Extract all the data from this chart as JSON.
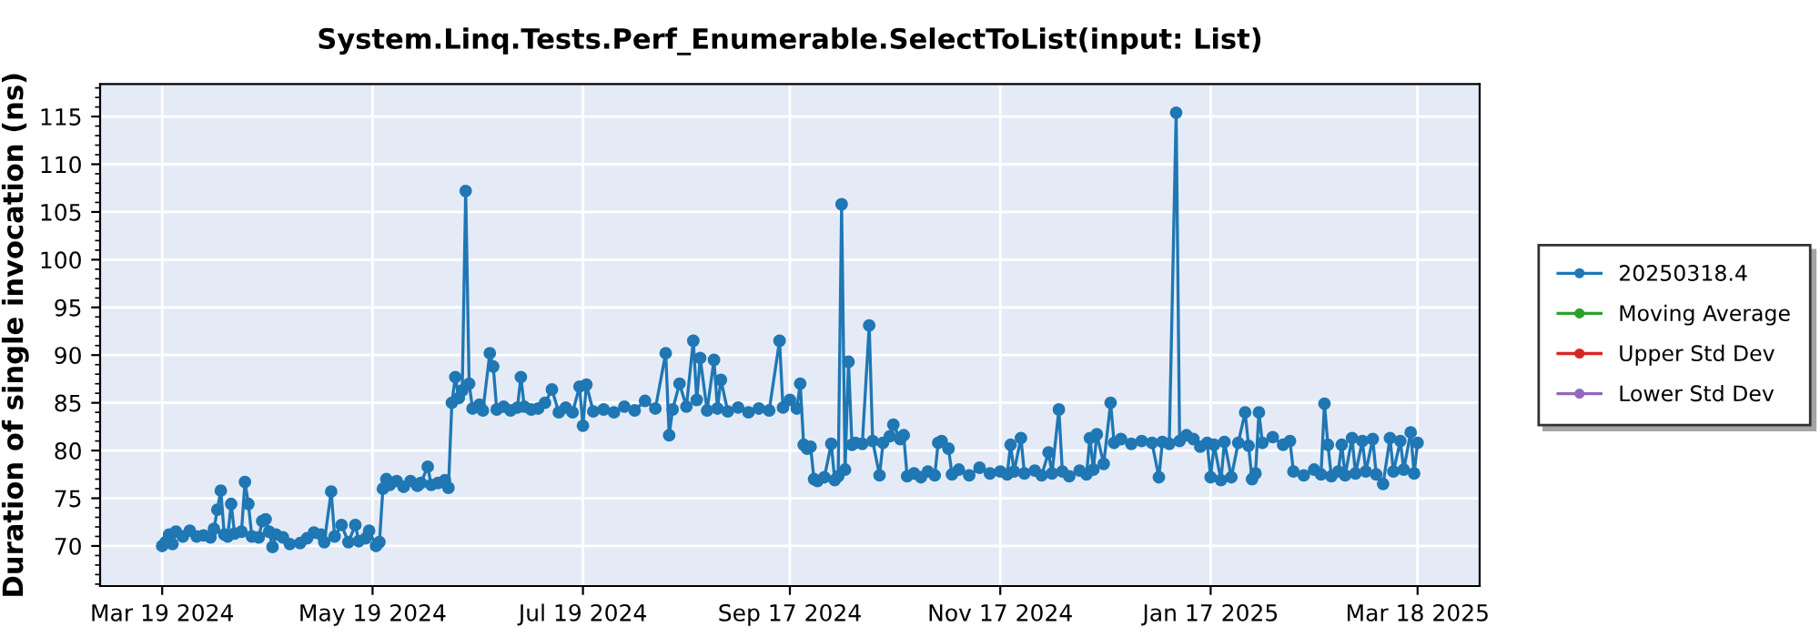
{
  "chart_data": {
    "type": "line",
    "title": "System.Linq.Tests.Perf_Enumerable.SelectToList(input: List)",
    "ylabel": "Duration of single invocation (ns)",
    "xlim": [
      "2024-03-01",
      "2025-04-05"
    ],
    "ylim": [
      65.8,
      118.4
    ],
    "xticks": [
      {
        "value": "2024-03-19",
        "label": "Mar 19 2024"
      },
      {
        "value": "2024-05-19",
        "label": "May 19 2024"
      },
      {
        "value": "2024-07-19",
        "label": "Jul 19 2024"
      },
      {
        "value": "2024-09-17",
        "label": "Sep 17 2024"
      },
      {
        "value": "2024-11-17",
        "label": "Nov 17 2024"
      },
      {
        "value": "2025-01-17",
        "label": "Jan 17 2025"
      },
      {
        "value": "2025-03-18",
        "label": "Mar 18 2025"
      }
    ],
    "yticks": [
      70,
      75,
      80,
      85,
      90,
      95,
      100,
      105,
      110,
      115
    ],
    "grid": true,
    "legend": "right",
    "marker": "circle",
    "line_style": "solid",
    "series": [
      {
        "name": "20250318.4",
        "color": "#1f77b4",
        "x": [
          "2024-03-19",
          "2024-03-20",
          "2024-03-21",
          "2024-03-22",
          "2024-03-23",
          "2024-03-25",
          "2024-03-27",
          "2024-03-29",
          "2024-03-31",
          "2024-04-02",
          "2024-04-03",
          "2024-04-04",
          "2024-04-05",
          "2024-04-06",
          "2024-04-07",
          "2024-04-08",
          "2024-04-09",
          "2024-04-11",
          "2024-04-12",
          "2024-04-13",
          "2024-04-14",
          "2024-04-16",
          "2024-04-17",
          "2024-04-18",
          "2024-04-19",
          "2024-04-20",
          "2024-04-21",
          "2024-04-23",
          "2024-04-25",
          "2024-04-28",
          "2024-04-30",
          "2024-05-02",
          "2024-05-04",
          "2024-05-05",
          "2024-05-07",
          "2024-05-08",
          "2024-05-10",
          "2024-05-12",
          "2024-05-14",
          "2024-05-15",
          "2024-05-17",
          "2024-05-18",
          "2024-05-20",
          "2024-05-21",
          "2024-05-22",
          "2024-05-23",
          "2024-05-24",
          "2024-05-26",
          "2024-05-28",
          "2024-05-30",
          "2024-06-01",
          "2024-06-02",
          "2024-06-04",
          "2024-06-05",
          "2024-06-07",
          "2024-06-09",
          "2024-06-10",
          "2024-06-11",
          "2024-06-12",
          "2024-06-13",
          "2024-06-14",
          "2024-06-15",
          "2024-06-16",
          "2024-06-17",
          "2024-06-19",
          "2024-06-20",
          "2024-06-22",
          "2024-06-23",
          "2024-06-24",
          "2024-06-26",
          "2024-06-28",
          "2024-06-30",
          "2024-07-01",
          "2024-07-02",
          "2024-07-04",
          "2024-07-06",
          "2024-07-08",
          "2024-07-10",
          "2024-07-12",
          "2024-07-14",
          "2024-07-16",
          "2024-07-18",
          "2024-07-19",
          "2024-07-20",
          "2024-07-22",
          "2024-07-25",
          "2024-07-28",
          "2024-07-31",
          "2024-08-03",
          "2024-08-06",
          "2024-08-09",
          "2024-08-12",
          "2024-08-13",
          "2024-08-14",
          "2024-08-16",
          "2024-08-18",
          "2024-08-20",
          "2024-08-21",
          "2024-08-22",
          "2024-08-24",
          "2024-08-26",
          "2024-08-27",
          "2024-08-28",
          "2024-08-30",
          "2024-09-02",
          "2024-09-05",
          "2024-09-08",
          "2024-09-11",
          "2024-09-14",
          "2024-09-15",
          "2024-09-17",
          "2024-09-19",
          "2024-09-20",
          "2024-09-21",
          "2024-09-22",
          "2024-09-23",
          "2024-09-24",
          "2024-09-25",
          "2024-09-27",
          "2024-09-29",
          "2024-09-30",
          "2024-10-01",
          "2024-10-02",
          "2024-10-03",
          "2024-10-04",
          "2024-10-05",
          "2024-10-06",
          "2024-10-08",
          "2024-10-10",
          "2024-10-11",
          "2024-10-13",
          "2024-10-14",
          "2024-10-16",
          "2024-10-17",
          "2024-10-19",
          "2024-10-20",
          "2024-10-21",
          "2024-10-23",
          "2024-10-25",
          "2024-10-27",
          "2024-10-29",
          "2024-10-30",
          "2024-10-31",
          "2024-11-02",
          "2024-11-03",
          "2024-11-05",
          "2024-11-08",
          "2024-11-11",
          "2024-11-14",
          "2024-11-17",
          "2024-11-19",
          "2024-11-20",
          "2024-11-21",
          "2024-11-23",
          "2024-11-24",
          "2024-11-27",
          "2024-11-29",
          "2024-12-01",
          "2024-12-02",
          "2024-12-04",
          "2024-12-05",
          "2024-12-07",
          "2024-12-10",
          "2024-12-12",
          "2024-12-13",
          "2024-12-14",
          "2024-12-15",
          "2024-12-17",
          "2024-12-19",
          "2024-12-20",
          "2024-12-22",
          "2024-12-25",
          "2024-12-28",
          "2024-12-31",
          "2025-01-02",
          "2025-01-03",
          "2025-01-05",
          "2025-01-07",
          "2025-01-08",
          "2025-01-10",
          "2025-01-12",
          "2025-01-14",
          "2025-01-16",
          "2025-01-17",
          "2025-01-18",
          "2025-01-20",
          "2025-01-21",
          "2025-01-23",
          "2025-01-25",
          "2025-01-27",
          "2025-01-28",
          "2025-01-29",
          "2025-01-30",
          "2025-01-31",
          "2025-02-01",
          "2025-02-04",
          "2025-02-07",
          "2025-02-09",
          "2025-02-10",
          "2025-02-13",
          "2025-02-16",
          "2025-02-18",
          "2025-02-19",
          "2025-02-20",
          "2025-02-21",
          "2025-02-23",
          "2025-02-24",
          "2025-02-25",
          "2025-02-27",
          "2025-02-28",
          "2025-03-02",
          "2025-03-03",
          "2025-03-05",
          "2025-03-06",
          "2025-03-08",
          "2025-03-10",
          "2025-03-11",
          "2025-03-13",
          "2025-03-14",
          "2025-03-16",
          "2025-03-17",
          "2025-03-18"
        ],
        "values": [
          70.0,
          70.4,
          71.2,
          70.2,
          71.5,
          71.0,
          71.6,
          71.0,
          71.1,
          70.9,
          71.8,
          73.8,
          75.8,
          71.2,
          71.0,
          74.4,
          71.3,
          71.5,
          76.7,
          74.4,
          71.0,
          70.9,
          72.6,
          72.8,
          71.5,
          69.9,
          71.2,
          70.9,
          70.2,
          70.3,
          70.8,
          71.4,
          71.2,
          70.4,
          75.7,
          71.0,
          72.2,
          70.4,
          72.2,
          70.5,
          70.8,
          71.6,
          70.0,
          70.4,
          76.0,
          77.0,
          76.4,
          76.8,
          76.2,
          76.8,
          76.3,
          76.6,
          78.3,
          76.4,
          76.6,
          76.9,
          76.1,
          85.0,
          87.7,
          85.5,
          86.3,
          107.2,
          87.0,
          84.4,
          84.8,
          84.2,
          90.2,
          88.8,
          84.3,
          84.6,
          84.2,
          84.5,
          87.7,
          84.6,
          84.3,
          84.4,
          85.0,
          86.4,
          84.0,
          84.5,
          84.0,
          86.7,
          82.6,
          86.9,
          84.1,
          84.3,
          84.0,
          84.6,
          84.2,
          85.2,
          84.4,
          90.2,
          81.6,
          84.3,
          87.0,
          84.6,
          91.5,
          85.3,
          89.7,
          84.2,
          89.5,
          84.4,
          87.4,
          84.1,
          84.5,
          84.0,
          84.4,
          84.2,
          91.5,
          84.5,
          85.3,
          84.4,
          87.0,
          80.6,
          80.2,
          80.4,
          77.0,
          76.8,
          77.2,
          80.7,
          76.9,
          77.3,
          105.8,
          78.0,
          89.3,
          80.6,
          80.8,
          80.7,
          93.1,
          81.0,
          77.4,
          80.8,
          81.5,
          82.7,
          81.2,
          81.6,
          77.3,
          77.6,
          77.2,
          77.8,
          77.4,
          80.8,
          81.0,
          80.2,
          77.5,
          78.0,
          77.4,
          78.2,
          77.6,
          77.8,
          77.5,
          80.6,
          77.8,
          81.3,
          77.6,
          77.9,
          77.4,
          79.8,
          77.6,
          84.3,
          77.8,
          77.3,
          77.9,
          77.5,
          81.3,
          78.0,
          81.7,
          78.6,
          85.0,
          80.8,
          81.2,
          80.7,
          81.0,
          80.8,
          77.2,
          80.9,
          80.7,
          115.4,
          81.0,
          81.6,
          81.2,
          80.4,
          80.8,
          77.2,
          80.6,
          76.9,
          80.9,
          77.2,
          80.8,
          84.0,
          80.5,
          77.0,
          77.6,
          84.0,
          80.8,
          81.4,
          80.6,
          81.0,
          77.8,
          77.4,
          78.0,
          77.5,
          84.9,
          80.6,
          77.3,
          77.8,
          80.6,
          77.4,
          81.3,
          77.6,
          81.0,
          77.8,
          81.2,
          77.5,
          76.5,
          81.3,
          77.8,
          81.0,
          78.0,
          81.9,
          77.6,
          80.8
        ]
      },
      {
        "name": "Moving Average",
        "color": "#2ca02c"
      },
      {
        "name": "Upper Std Dev",
        "color": "#d62728"
      },
      {
        "name": "Lower Std Dev",
        "color": "#9467bd"
      }
    ]
  }
}
